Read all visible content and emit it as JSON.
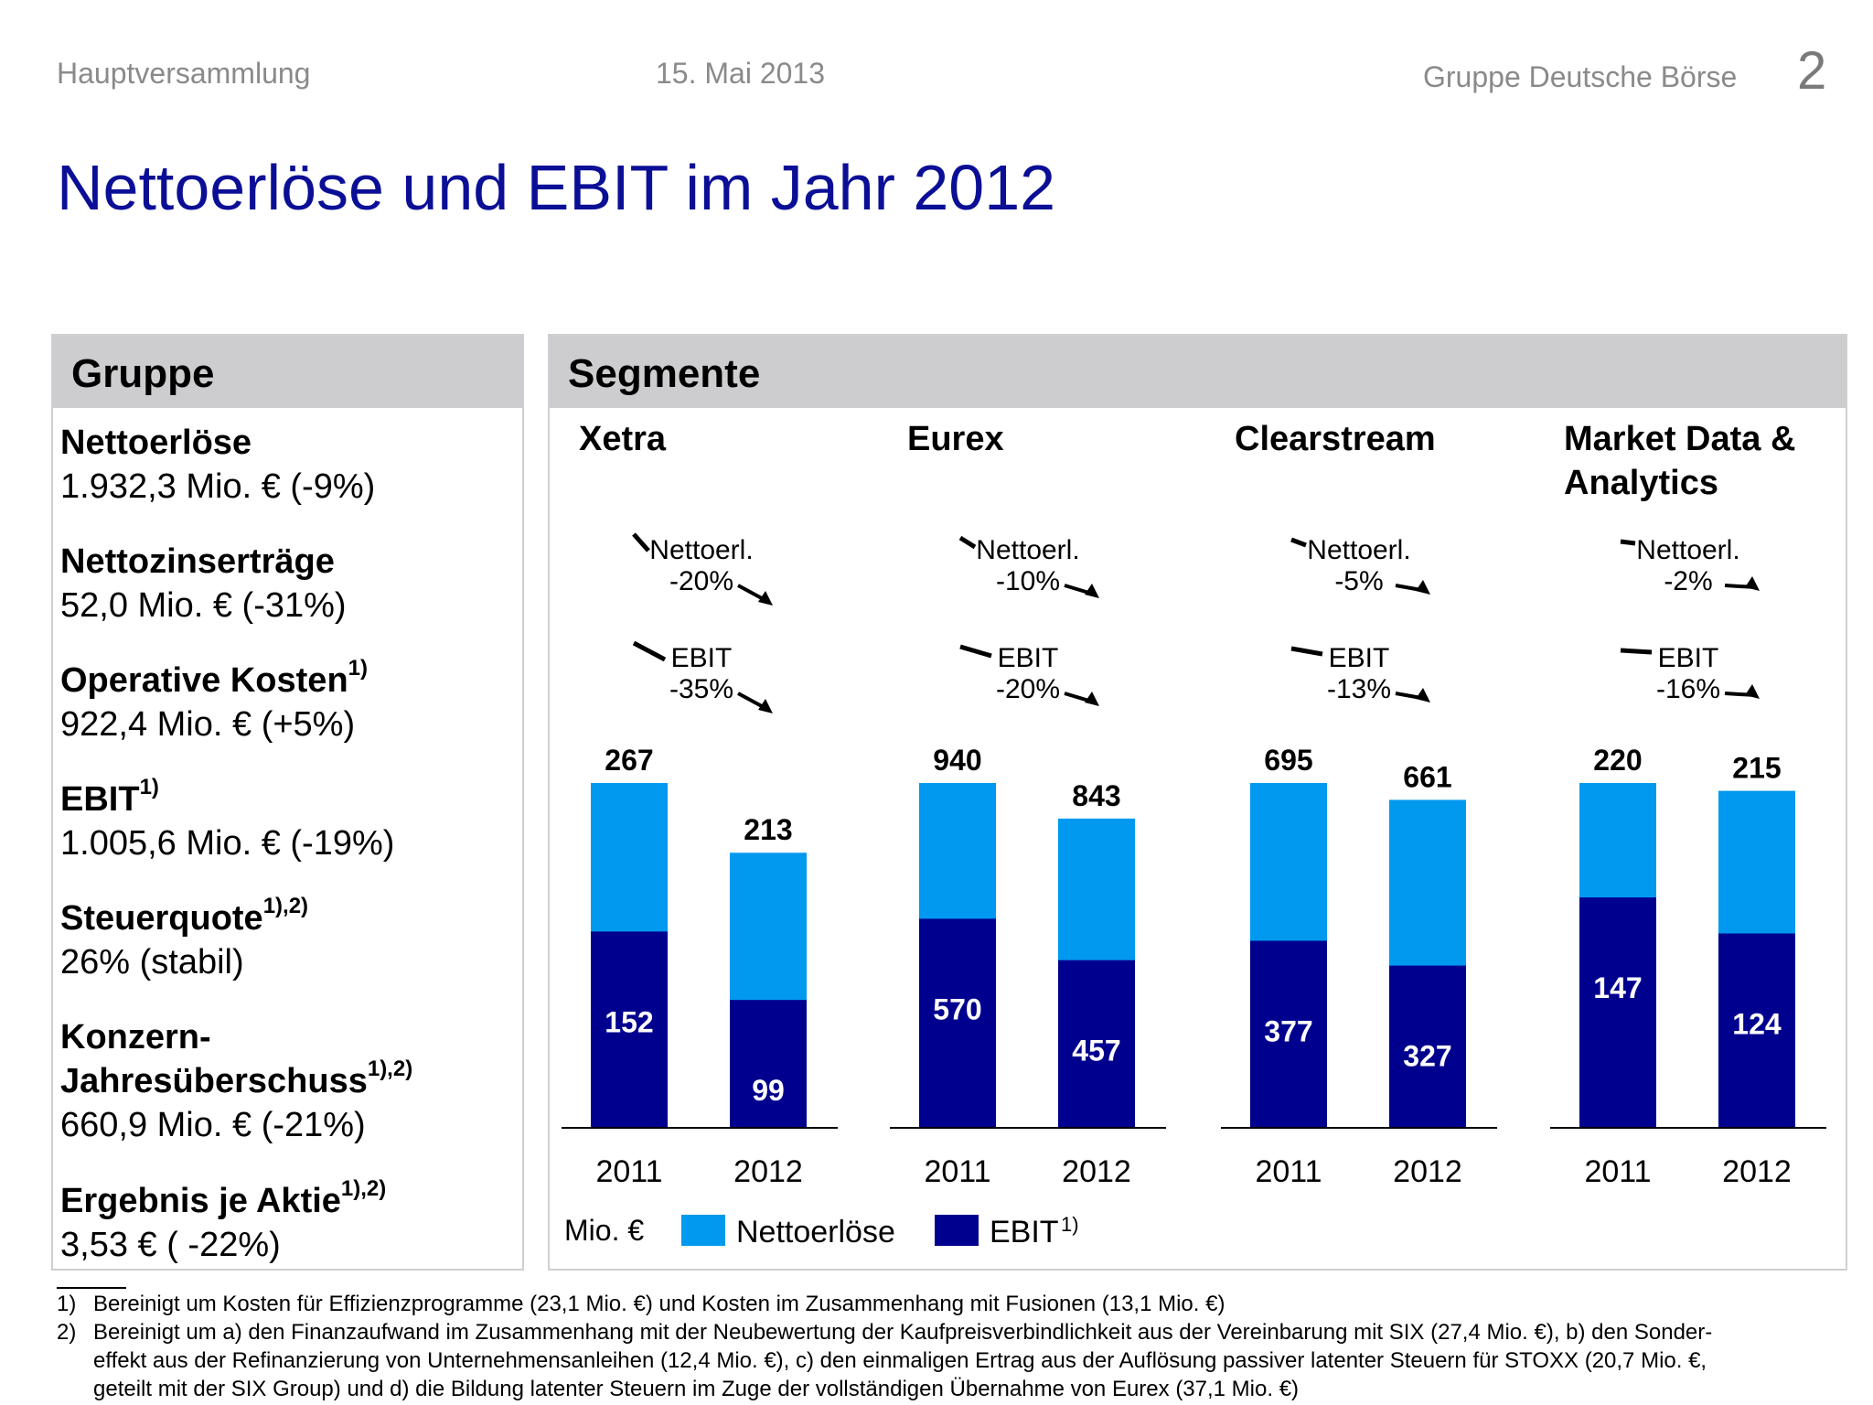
{
  "header": {
    "left": "Hauptversammlung",
    "date": "15. Mai 2013",
    "right": "Gruppe Deutsche Börse",
    "page": "2"
  },
  "title": "Nettoerlöse und EBIT im Jahr 2012",
  "left_panel": {
    "heading": "Gruppe",
    "items": [
      {
        "label": "Nettoerlöse",
        "sup": "",
        "value": "1.932,3 Mio. € (-9%)"
      },
      {
        "label": "Nettozinserträge",
        "sup": "",
        "value": "52,0 Mio. € (-31%)"
      },
      {
        "label": "Operative Kosten",
        "sup": "1)",
        "value": "922,4 Mio. € (+5%)"
      },
      {
        "label": "EBIT",
        "sup": "1)",
        "value": "1.005,6 Mio. € (-19%)"
      },
      {
        "label": "Steuerquote",
        "sup": "1),2)",
        "value": "26% (stabil)"
      },
      {
        "label": "Konzern-",
        "label2": "Jahresüberschuss",
        "sup": "1),2)",
        "value": "660,9 Mio. € (-21%)"
      },
      {
        "label": "Ergebnis je Aktie",
        "sup": "1),2)",
        "value": "3,53 € ( -22%)"
      }
    ]
  },
  "right_panel": {
    "heading": "Segmente",
    "unit": "Mio. €",
    "legend": [
      {
        "name": "Nettoerlöse",
        "sup": "",
        "color": "#0099ef"
      },
      {
        "name": "EBIT",
        "sup": "1)",
        "color": "#00008f"
      }
    ]
  },
  "chart_data": {
    "type": "bar",
    "stacked": "overlay",
    "categories": [
      "2011",
      "2012"
    ],
    "colors": {
      "net": "#0099ef",
      "ebit": "#00008f"
    },
    "segments": [
      {
        "name": "Xetra",
        "name2": "",
        "net": [
          267,
          213
        ],
        "ebit": [
          152,
          99
        ],
        "net_change_label": "Nettoerl.",
        "net_change": "-20%",
        "ebit_change_label": "EBIT",
        "ebit_change": "-35%",
        "trend_net": "down-strong",
        "trend_ebit": "down-strong"
      },
      {
        "name": "Eurex",
        "name2": "",
        "net": [
          940,
          843
        ],
        "ebit": [
          570,
          457
        ],
        "net_change_label": "Nettoerl.",
        "net_change": "-10%",
        "ebit_change_label": "EBIT",
        "ebit_change": "-20%",
        "trend_net": "down",
        "trend_ebit": "down"
      },
      {
        "name": "Clearstream",
        "name2": "",
        "net": [
          695,
          661
        ],
        "ebit": [
          377,
          327
        ],
        "net_change_label": "Nettoerl.",
        "net_change": "-5%",
        "ebit_change_label": "EBIT",
        "ebit_change": "-13%",
        "trend_net": "down-slight",
        "trend_ebit": "down-slight"
      },
      {
        "name": "Market Data &",
        "name2": "Analytics",
        "net": [
          220,
          215
        ],
        "ebit": [
          147,
          124
        ],
        "net_change_label": "Nettoerl.",
        "net_change": "-2%",
        "ebit_change_label": "EBIT",
        "ebit_change": "-16%",
        "trend_net": "flat",
        "trend_ebit": "flat"
      }
    ]
  },
  "footnotes": [
    {
      "num": "1)",
      "lines": [
        "Bereinigt um Kosten für Effizienzprogramme (23,1 Mio. €) und Kosten im Zusammenhang mit Fusionen (13,1 Mio. €)"
      ]
    },
    {
      "num": "2)",
      "lines": [
        "Bereinigt um a) den Finanzaufwand im Zusammenhang mit der Neubewertung der Kaufpreisverbindlichkeit aus der Vereinbarung mit SIX (27,4 Mio. €), b) den Sonder-",
        "effekt aus der Refinanzierung von Unternehmensanleihen (12,4 Mio. €), c) den einmaligen Ertrag aus der Auflösung passiver latenter Steuern für STOXX (20,7 Mio. €,",
        "geteilt mit der SIX Group) und d) die Bildung latenter Steuern im Zuge der vollständigen Übernahme von Eurex (37,1 Mio. €)"
      ]
    }
  ]
}
